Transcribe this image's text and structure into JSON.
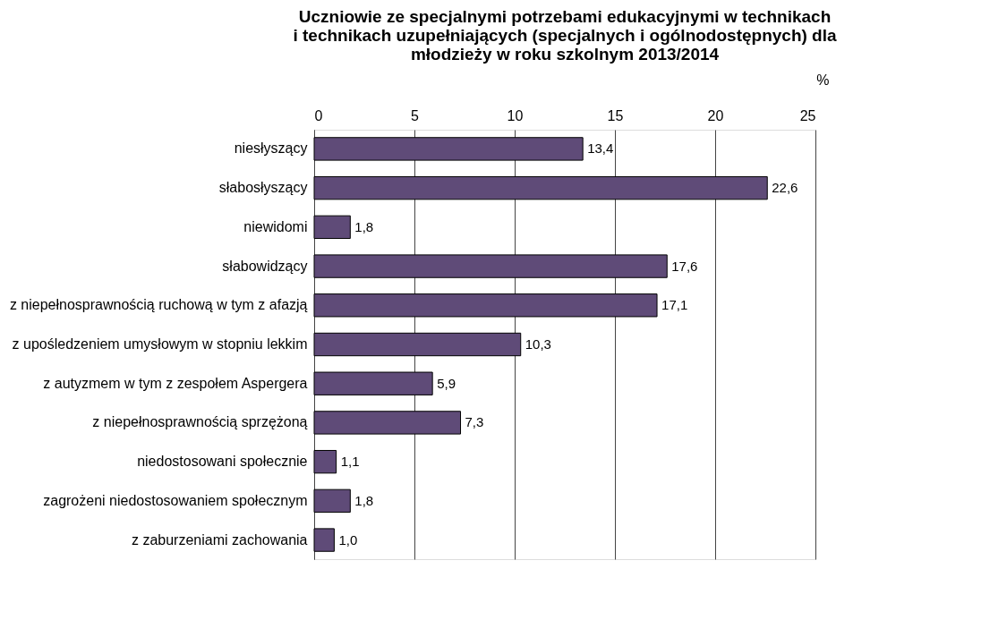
{
  "chart_data": {
    "type": "bar",
    "orientation": "horizontal",
    "title": "Uczniowie ze specjalnymi potrzebami edukacyjnymi w technikach\ni technikach uzupełniających (specjalnych i ogólnodostępnych) dla\nmłodzieży w roku szkolnym 2013/2014",
    "xlabel": "%",
    "categories": [
      "niesłyszący",
      "słabosłyszący",
      "niewidomi",
      "słabowidzący",
      "z niepełnosprawnością ruchową w tym z afazją",
      "z upośledzeniem umysłowym w stopniu lekkim",
      "z autyzmem w tym z zespołem Aspergera",
      "z niepełnosprawnością sprzężoną",
      "niedostosowani społecznie",
      "zagrożeni niedostosowaniem społecznym",
      "z zaburzeniami zachowania"
    ],
    "values": [
      13.4,
      22.6,
      1.8,
      17.6,
      17.1,
      10.3,
      5.9,
      7.3,
      1.1,
      1.8,
      1.0
    ],
    "value_labels": [
      "13,4",
      "22,6",
      "1,8",
      "17,6",
      "17,1",
      "10,3",
      "5,9",
      "7,3",
      "1,1",
      "1,8",
      "1,0"
    ],
    "color": "#5f4b78",
    "xlim": [
      0,
      25
    ],
    "xticks": [
      0,
      5,
      10,
      15,
      20,
      25
    ],
    "grid": "x"
  }
}
